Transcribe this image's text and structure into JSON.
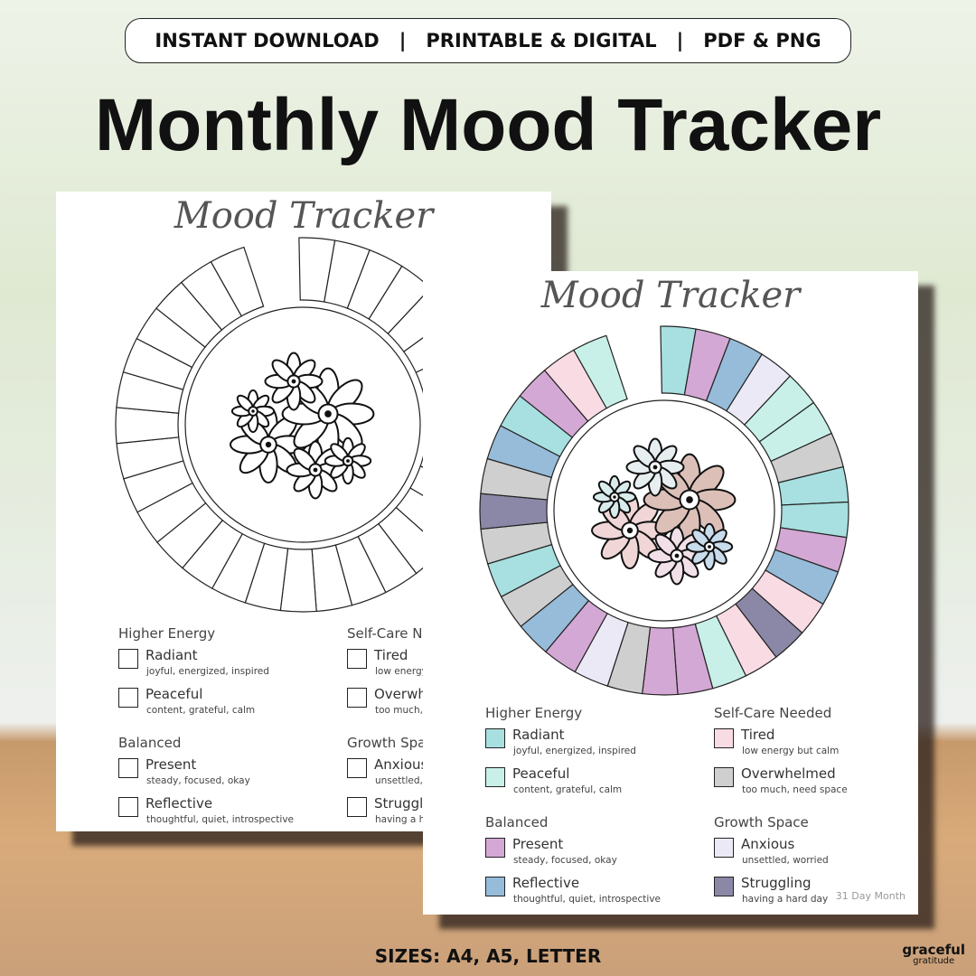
{
  "banner": [
    "INSTANT DOWNLOAD",
    "|",
    "PRINTABLE & DIGITAL",
    "|",
    "PDF & PNG"
  ],
  "title": "Monthly Mood Tracker",
  "cards": [
    {
      "heading": "Mood Tracker",
      "groups": [
        {
          "title": "Higher Energy",
          "items": [
            {
              "label": "Radiant",
              "desc": "joyful, energized, inspired"
            },
            {
              "label": "Peaceful",
              "desc": "content, grateful, calm"
            }
          ]
        },
        {
          "title": "Self-Care Needed",
          "items": [
            {
              "label": "Tired",
              "desc": "low energy but calm"
            },
            {
              "label": "Overwhelmed",
              "desc": "too much, need space"
            }
          ]
        },
        {
          "title": "Balanced",
          "items": [
            {
              "label": "Present",
              "desc": "steady, focused, okay"
            },
            {
              "label": "Reflective",
              "desc": "thoughtful, quiet, introspective"
            }
          ]
        },
        {
          "title": "Growth Space",
          "items": [
            {
              "label": "Anxious",
              "desc": "unsettled, worried"
            },
            {
              "label": "Struggling",
              "desc": "having a hard day"
            }
          ]
        }
      ]
    },
    {
      "heading": "Mood Tracker",
      "groups": [
        {
          "title": "Higher Energy",
          "items": [
            {
              "label": "Radiant",
              "desc": "joyful, energized, inspired",
              "color": "#a8dfe0"
            },
            {
              "label": "Peaceful",
              "desc": "content, grateful, calm",
              "color": "#c8f0e8"
            }
          ]
        },
        {
          "title": "Self-Care Needed",
          "items": [
            {
              "label": "Tired",
              "desc": "low energy but calm",
              "color": "#f9dbe4"
            },
            {
              "label": "Overwhelmed",
              "desc": "too much, need space",
              "color": "#cfcfcf"
            }
          ]
        },
        {
          "title": "Balanced",
          "items": [
            {
              "label": "Present",
              "desc": "steady, focused, okay",
              "color": "#d4a8d4"
            },
            {
              "label": "Reflective",
              "desc": "thoughtful, quiet, introspective",
              "color": "#97bcd9"
            }
          ]
        },
        {
          "title": "Growth Space",
          "items": [
            {
              "label": "Anxious",
              "desc": "unsettled, worried",
              "color": "#ebe9f5"
            },
            {
              "label": "Struggling",
              "desc": "having a hard day",
              "color": "#8a88a6"
            }
          ]
        }
      ],
      "note": "31 Day Month"
    }
  ],
  "footer": "SIZES: A4, A5, LETTER",
  "brand": {
    "name": "graceful",
    "sub": "gratitude"
  }
}
